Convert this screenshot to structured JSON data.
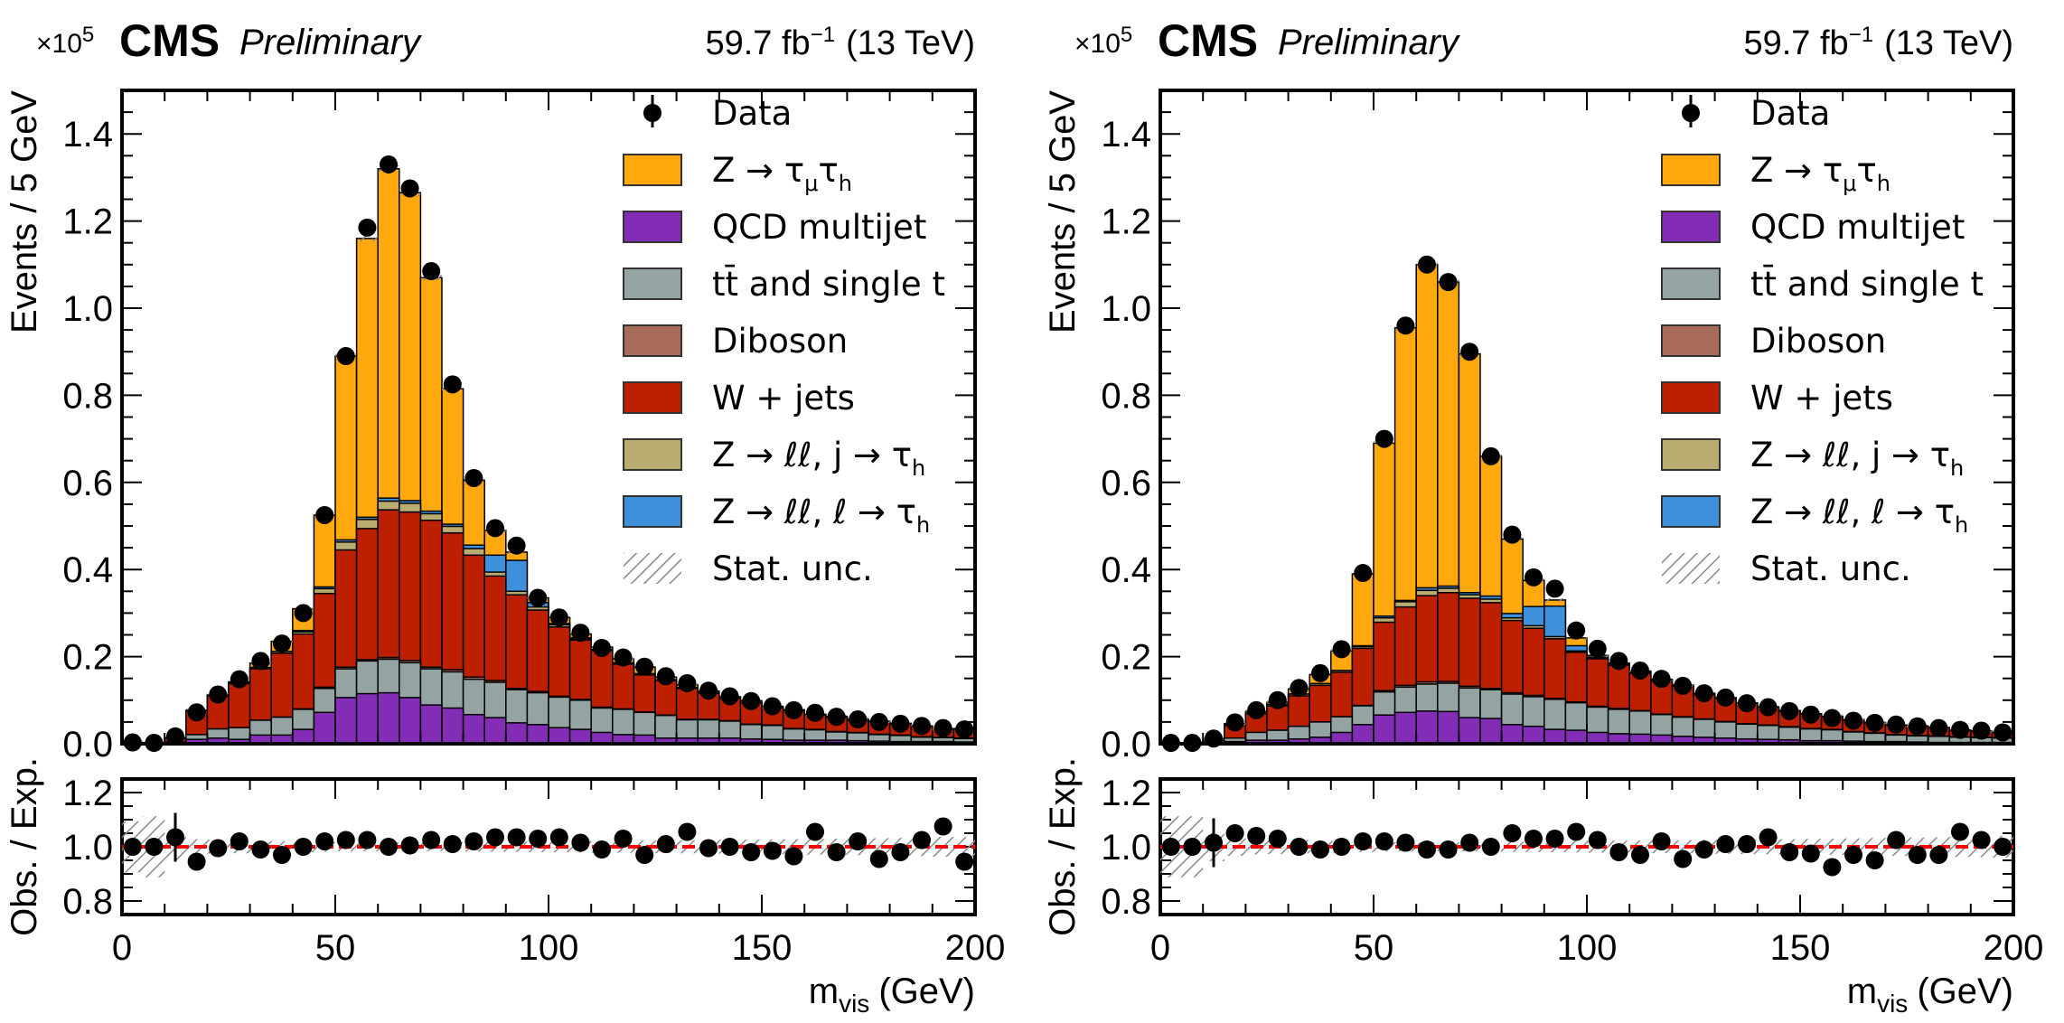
{
  "chart_data": [
    {
      "type": "bar",
      "subtype": "stacked-histogram-with-ratio",
      "panel": "left",
      "header": {
        "experiment": "CMS",
        "status": "Preliminary",
        "lumi": "59.7 fb",
        "lumi_exp": "−1",
        "energy": "(13 TeV)"
      },
      "y_multiplier": "×10",
      "y_multiplier_exp": "5",
      "ylabel": "Events / 5 GeV",
      "xlabel": "m",
      "xlabel_sub": "vis",
      "xlabel_unit": "(GeV)",
      "ratio_ylabel": "Obs. / Exp.",
      "xlim": [
        0,
        200
      ],
      "ylim": [
        0,
        1.5
      ],
      "ratio_ylim": [
        0.75,
        1.25
      ],
      "bin_width": 5,
      "xticks": [
        "0",
        "50",
        "100",
        "150",
        "200"
      ],
      "yticks": [
        "0.0",
        "0.2",
        "0.4",
        "0.6",
        "0.8",
        "1.0",
        "1.2",
        "1.4"
      ],
      "ratio_yticks": [
        "0.8",
        "1.0",
        "1.2"
      ],
      "legend_position": "top-right",
      "data": [
        0.003,
        0.002,
        0.017,
        0.072,
        0.113,
        0.148,
        0.19,
        0.23,
        0.3,
        0.525,
        0.89,
        1.185,
        1.33,
        1.275,
        1.085,
        0.825,
        0.61,
        0.495,
        0.455,
        0.335,
        0.29,
        0.255,
        0.22,
        0.198,
        0.177,
        0.155,
        0.139,
        0.122,
        0.109,
        0.098,
        0.086,
        0.077,
        0.071,
        0.062,
        0.056,
        0.05,
        0.046,
        0.041,
        0.036,
        0.033
      ],
      "stack_tops": {
        "qcd": [
          0,
          0,
          0.002,
          0.01,
          0.013,
          0.01,
          0.02,
          0.02,
          0.033,
          0.072,
          0.106,
          0.115,
          0.117,
          0.106,
          0.089,
          0.082,
          0.067,
          0.06,
          0.048,
          0.044,
          0.037,
          0.033,
          0.026,
          0.021,
          0.02,
          0.013,
          0.013,
          0.013,
          0.013,
          0.011,
          0.01,
          0.008,
          0.008,
          0.008,
          0.007,
          0.006,
          0.005,
          0.005,
          0.005,
          0.004
        ],
        "ttbar": [
          0,
          0,
          0.004,
          0.021,
          0.034,
          0.037,
          0.054,
          0.061,
          0.079,
          0.127,
          0.172,
          0.19,
          0.194,
          0.186,
          0.172,
          0.165,
          0.148,
          0.141,
          0.124,
          0.117,
          0.107,
          0.1,
          0.082,
          0.079,
          0.072,
          0.065,
          0.055,
          0.055,
          0.052,
          0.044,
          0.042,
          0.034,
          0.032,
          0.027,
          0.025,
          0.021,
          0.019,
          0.015,
          0.014,
          0.012
        ],
        "diboson": [
          0,
          0,
          0.004,
          0.021,
          0.034,
          0.037,
          0.054,
          0.061,
          0.08,
          0.13,
          0.176,
          0.193,
          0.198,
          0.191,
          0.176,
          0.17,
          0.153,
          0.145,
          0.127,
          0.12,
          0.109,
          0.102,
          0.084,
          0.08,
          0.073,
          0.066,
          0.056,
          0.056,
          0.053,
          0.045,
          0.043,
          0.035,
          0.033,
          0.028,
          0.026,
          0.022,
          0.02,
          0.016,
          0.015,
          0.013
        ],
        "wjets": [
          0,
          0,
          0.012,
          0.075,
          0.11,
          0.138,
          0.172,
          0.208,
          0.252,
          0.345,
          0.445,
          0.494,
          0.537,
          0.532,
          0.513,
          0.484,
          0.433,
          0.385,
          0.342,
          0.307,
          0.268,
          0.238,
          0.214,
          0.183,
          0.158,
          0.145,
          0.127,
          0.116,
          0.104,
          0.094,
          0.083,
          0.075,
          0.066,
          0.061,
          0.054,
          0.051,
          0.046,
          0.04,
          0.034,
          0.034
        ],
        "zll_jtau": [
          0,
          0,
          0.013,
          0.076,
          0.111,
          0.14,
          0.175,
          0.212,
          0.257,
          0.356,
          0.463,
          0.515,
          0.557,
          0.552,
          0.528,
          0.499,
          0.448,
          0.394,
          0.35,
          0.314,
          0.273,
          0.241,
          0.216,
          0.185,
          0.16,
          0.146,
          0.128,
          0.117,
          0.105,
          0.095,
          0.084,
          0.076,
          0.067,
          0.062,
          0.055,
          0.051,
          0.046,
          0.04,
          0.034,
          0.034
        ],
        "zll_ltau": [
          0,
          0,
          0.013,
          0.076,
          0.111,
          0.14,
          0.175,
          0.212,
          0.26,
          0.36,
          0.468,
          0.52,
          0.564,
          0.558,
          0.534,
          0.504,
          0.456,
          0.433,
          0.421,
          0.324,
          0.276,
          0.243,
          0.217,
          0.186,
          0.161,
          0.147,
          0.129,
          0.117,
          0.105,
          0.095,
          0.084,
          0.076,
          0.067,
          0.062,
          0.055,
          0.051,
          0.046,
          0.04,
          0.034,
          0.034
        ],
        "ztautau": [
          0.003,
          0.002,
          0.014,
          0.077,
          0.112,
          0.142,
          0.185,
          0.235,
          0.31,
          0.525,
          0.89,
          1.16,
          1.32,
          1.265,
          1.07,
          0.815,
          0.605,
          0.49,
          0.44,
          0.335,
          0.29,
          0.252,
          0.222,
          0.195,
          0.176,
          0.153,
          0.135,
          0.121,
          0.108,
          0.099,
          0.086,
          0.078,
          0.068,
          0.063,
          0.056,
          0.052,
          0.047,
          0.041,
          0.034,
          0.035
        ]
      },
      "ratio": [
        1.0,
        1.0,
        1.035,
        0.945,
        0.995,
        1.02,
        0.99,
        0.97,
        1.0,
        1.02,
        1.025,
        1.025,
        1.0,
        1.005,
        1.025,
        1.01,
        1.02,
        1.035,
        1.035,
        1.03,
        1.035,
        1.015,
        0.99,
        1.03,
        0.97,
        1.01,
        1.055,
        0.995,
        1.0,
        0.98,
        0.985,
        0.965,
        1.055,
        0.98,
        1.02,
        0.955,
        0.98,
        1.025,
        1.075,
        0.945
      ]
    },
    {
      "type": "bar",
      "subtype": "stacked-histogram-with-ratio",
      "panel": "right",
      "header": {
        "experiment": "CMS",
        "status": "Preliminary",
        "lumi": "59.7 fb",
        "lumi_exp": "−1",
        "energy": "(13 TeV)"
      },
      "y_multiplier": "×10",
      "y_multiplier_exp": "5",
      "ylabel": "Events / 5 GeV",
      "xlabel": "m",
      "xlabel_sub": "vis",
      "xlabel_unit": "(GeV)",
      "ratio_ylabel": "Obs. / Exp.",
      "xlim": [
        0,
        200
      ],
      "ylim": [
        0,
        1.5
      ],
      "ratio_ylim": [
        0.75,
        1.25
      ],
      "bin_width": 5,
      "xticks": [
        "0",
        "50",
        "100",
        "150",
        "200"
      ],
      "yticks": [
        "0.0",
        "0.2",
        "0.4",
        "0.6",
        "0.8",
        "1.0",
        "1.2",
        "1.4"
      ],
      "ratio_yticks": [
        "0.8",
        "1.0",
        "1.2"
      ],
      "legend_position": "top-right",
      "data": [
        0.002,
        0.002,
        0.012,
        0.049,
        0.077,
        0.1,
        0.128,
        0.162,
        0.217,
        0.392,
        0.7,
        0.96,
        1.1,
        1.06,
        0.9,
        0.66,
        0.48,
        0.382,
        0.356,
        0.26,
        0.218,
        0.19,
        0.168,
        0.149,
        0.133,
        0.116,
        0.106,
        0.093,
        0.084,
        0.075,
        0.067,
        0.059,
        0.053,
        0.048,
        0.044,
        0.04,
        0.036,
        0.032,
        0.03,
        0.026
      ],
      "stack_tops": {
        "qcd": [
          0,
          0,
          0.001,
          0.005,
          0.008,
          0.008,
          0.011,
          0.015,
          0.026,
          0.044,
          0.066,
          0.072,
          0.075,
          0.074,
          0.06,
          0.058,
          0.044,
          0.04,
          0.033,
          0.031,
          0.026,
          0.023,
          0.022,
          0.02,
          0.017,
          0.015,
          0.013,
          0.011,
          0.01,
          0.009,
          0.007,
          0.007,
          0.006,
          0.005,
          0.005,
          0.004,
          0.003,
          0.003,
          0.003,
          0.003
        ],
        "ttbar": [
          0,
          0,
          0.002,
          0.013,
          0.026,
          0.031,
          0.04,
          0.05,
          0.062,
          0.087,
          0.119,
          0.13,
          0.137,
          0.139,
          0.128,
          0.124,
          0.114,
          0.108,
          0.102,
          0.094,
          0.084,
          0.079,
          0.075,
          0.067,
          0.061,
          0.056,
          0.05,
          0.045,
          0.042,
          0.038,
          0.034,
          0.032,
          0.027,
          0.024,
          0.02,
          0.018,
          0.017,
          0.015,
          0.014,
          0.013
        ],
        "diboson": [
          0,
          0,
          0.002,
          0.013,
          0.026,
          0.031,
          0.04,
          0.05,
          0.062,
          0.088,
          0.122,
          0.134,
          0.142,
          0.143,
          0.132,
          0.127,
          0.117,
          0.111,
          0.104,
          0.096,
          0.086,
          0.081,
          0.076,
          0.068,
          0.062,
          0.057,
          0.051,
          0.046,
          0.043,
          0.039,
          0.035,
          0.033,
          0.028,
          0.025,
          0.021,
          0.019,
          0.018,
          0.016,
          0.015,
          0.014
        ],
        "wjets": [
          0,
          0,
          0.007,
          0.042,
          0.069,
          0.087,
          0.11,
          0.134,
          0.164,
          0.219,
          0.279,
          0.314,
          0.34,
          0.347,
          0.334,
          0.324,
          0.283,
          0.265,
          0.241,
          0.21,
          0.195,
          0.18,
          0.162,
          0.144,
          0.132,
          0.113,
          0.104,
          0.092,
          0.084,
          0.075,
          0.068,
          0.062,
          0.054,
          0.048,
          0.043,
          0.041,
          0.037,
          0.031,
          0.029,
          0.026
        ],
        "zll_jtau": [
          0,
          0,
          0.008,
          0.043,
          0.07,
          0.09,
          0.114,
          0.138,
          0.168,
          0.223,
          0.289,
          0.326,
          0.352,
          0.357,
          0.342,
          0.332,
          0.289,
          0.271,
          0.246,
          0.213,
          0.197,
          0.182,
          0.164,
          0.145,
          0.133,
          0.114,
          0.105,
          0.093,
          0.084,
          0.076,
          0.068,
          0.062,
          0.055,
          0.048,
          0.043,
          0.041,
          0.037,
          0.031,
          0.029,
          0.026
        ],
        "zll_ltau": [
          0,
          0,
          0.008,
          0.043,
          0.07,
          0.09,
          0.114,
          0.138,
          0.168,
          0.225,
          0.293,
          0.329,
          0.358,
          0.362,
          0.347,
          0.339,
          0.299,
          0.315,
          0.316,
          0.225,
          0.199,
          0.183,
          0.165,
          0.146,
          0.134,
          0.115,
          0.105,
          0.093,
          0.084,
          0.076,
          0.068,
          0.062,
          0.055,
          0.048,
          0.043,
          0.041,
          0.037,
          0.031,
          0.029,
          0.026
        ],
        "ztautau": [
          0.002,
          0.002,
          0.012,
          0.046,
          0.074,
          0.095,
          0.126,
          0.159,
          0.213,
          0.39,
          0.69,
          0.955,
          1.1,
          1.06,
          0.895,
          0.66,
          0.47,
          0.375,
          0.33,
          0.243,
          0.203,
          0.185,
          0.167,
          0.148,
          0.135,
          0.116,
          0.106,
          0.094,
          0.085,
          0.076,
          0.069,
          0.063,
          0.055,
          0.049,
          0.043,
          0.041,
          0.037,
          0.031,
          0.029,
          0.026
        ]
      },
      "ratio": [
        1.0,
        1.0,
        1.015,
        1.05,
        1.04,
        1.03,
        1.0,
        0.99,
        1.0,
        1.02,
        1.02,
        1.015,
        0.99,
        0.99,
        1.015,
        1.0,
        1.05,
        1.03,
        1.03,
        1.055,
        1.025,
        0.98,
        0.97,
        1.02,
        0.955,
        0.99,
        1.01,
        1.01,
        1.035,
        0.98,
        0.975,
        0.925,
        0.97,
        0.95,
        1.025,
        0.97,
        0.97,
        1.055,
        1.025,
        1.0
      ]
    }
  ],
  "legend": [
    {
      "key": "data",
      "label": "Data",
      "kind": "marker"
    },
    {
      "key": "ztautau",
      "label": "Z  → τ",
      "sub1": "μ",
      "mid": "τ",
      "sub2": "h",
      "color": "#FFA90E",
      "kind": "box"
    },
    {
      "key": "qcd",
      "label": "QCD multijet",
      "color": "#832DB6",
      "kind": "box"
    },
    {
      "key": "ttbar",
      "label": "tt̄ and single t",
      "color": "#94A4A2",
      "kind": "box"
    },
    {
      "key": "diboson",
      "label": "Diboson",
      "color": "#A96B59",
      "kind": "box"
    },
    {
      "key": "wjets",
      "label": "W  +  jets",
      "color": "#BD1F01",
      "kind": "box"
    },
    {
      "key": "zll_jtau",
      "label": "Z → ℓℓ, j → τ",
      "sub2": "h",
      "color": "#B9AC70",
      "kind": "box"
    },
    {
      "key": "zll_ltau",
      "label": "Z  → ℓℓ, ℓ → τ",
      "sub2": "h",
      "color": "#3F90DA",
      "kind": "box"
    },
    {
      "key": "unc",
      "label": "Stat.  unc.",
      "kind": "hatch"
    }
  ],
  "colors": {
    "ztautau": "#FFA90E",
    "qcd": "#832DB6",
    "ttbar": "#94A4A2",
    "diboson": "#A96B59",
    "wjets": "#BD1F01",
    "zll_jtau": "#B9AC70",
    "zll_ltau": "#3F90DA",
    "ratio_line": "#FF0000",
    "hatch": "#888888"
  },
  "stack_order": [
    "qcd",
    "ttbar",
    "diboson",
    "wjets",
    "zll_jtau",
    "zll_ltau",
    "ztautau"
  ]
}
